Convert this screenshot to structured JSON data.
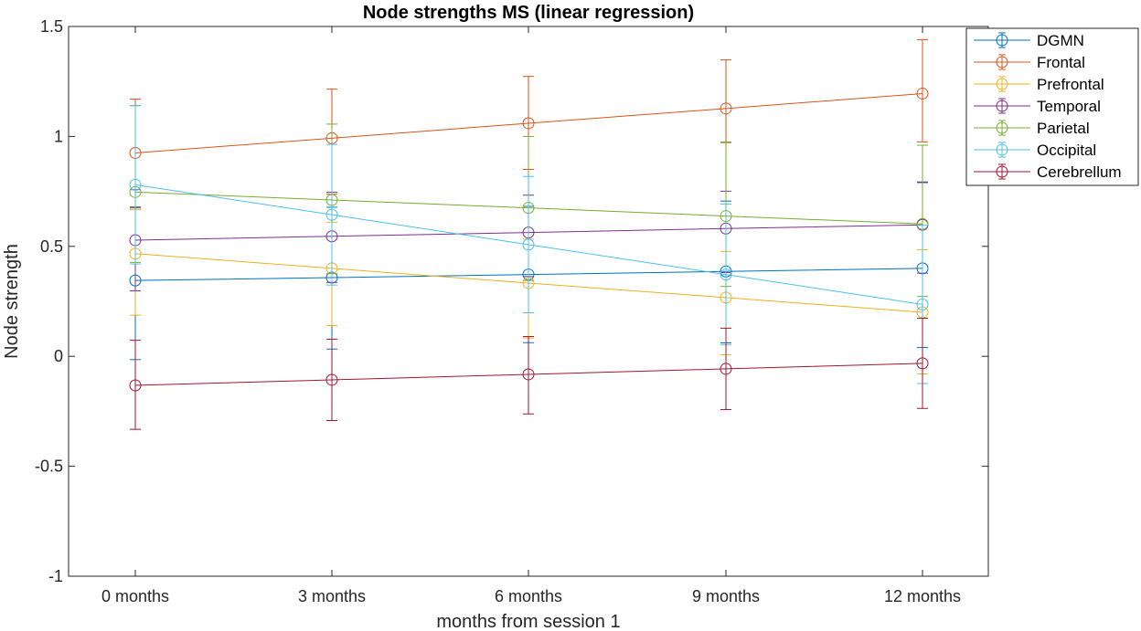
{
  "chart_data": {
    "type": "line",
    "title": "Node strengths MS (linear regression)",
    "xlabel": "months from session 1",
    "ylabel": "Node strength",
    "categories": [
      "0 months",
      "3 months",
      "6 months",
      "9 months",
      "12 months"
    ],
    "ylim": [
      -1,
      1.5
    ],
    "yticks": [
      -1,
      -0.5,
      0,
      0.5,
      1,
      1.5
    ],
    "ytick_labels": [
      "-1",
      "-0.5",
      "0",
      "0.5",
      "1",
      "1.5"
    ],
    "legend_position": "top-right-outside",
    "grid": false,
    "marker": "circle-open",
    "error_bars": true,
    "series": [
      {
        "name": "DGMN",
        "color": "#0072BD",
        "values": [
          0.345,
          0.358,
          0.372,
          0.386,
          0.4
        ],
        "err_lower": [
          0.36,
          0.325,
          0.31,
          0.325,
          0.36
        ],
        "err_upper": [
          0.33,
          0.32,
          0.31,
          0.32,
          0.39
        ]
      },
      {
        "name": "Frontal",
        "color": "#D95319",
        "values": [
          0.925,
          0.992,
          1.06,
          1.127,
          1.195
        ],
        "err_lower": [
          0.245,
          0.255,
          0.21,
          0.155,
          0.22
        ],
        "err_upper": [
          0.245,
          0.223,
          0.213,
          0.221,
          0.245
        ]
      },
      {
        "name": "Prefrontal",
        "color": "#EDB120",
        "values": [
          0.467,
          0.4,
          0.333,
          0.267,
          0.2
        ],
        "err_lower": [
          0.28,
          0.26,
          0.25,
          0.26,
          0.28
        ],
        "err_upper": [
          0.2,
          0.21,
          0.2,
          0.21,
          0.285
        ]
      },
      {
        "name": "Temporal",
        "color": "#7E2F8E",
        "values": [
          0.528,
          0.546,
          0.563,
          0.581,
          0.598
        ],
        "err_lower": [
          0.23,
          0.21,
          0.2,
          0.2,
          0.22
        ],
        "err_upper": [
          0.23,
          0.2,
          0.17,
          0.17,
          0.195
        ]
      },
      {
        "name": "Parietal",
        "color": "#77AC30",
        "values": [
          0.747,
          0.711,
          0.675,
          0.638,
          0.602
        ],
        "err_lower": [
          0.32,
          0.335,
          0.33,
          0.32,
          0.33
        ],
        "err_upper": [
          0.393,
          0.345,
          0.325,
          0.337,
          0.358
        ]
      },
      {
        "name": "Occipital",
        "color": "#4DBEEE",
        "values": [
          0.78,
          0.644,
          0.508,
          0.372,
          0.236
        ],
        "err_lower": [
          0.36,
          0.32,
          0.31,
          0.32,
          0.36
        ],
        "err_upper": [
          0.36,
          0.32,
          0.31,
          0.32,
          0.36
        ]
      },
      {
        "name": "Cerebrellum",
        "color": "#A2142F",
        "values": [
          -0.132,
          -0.107,
          -0.082,
          -0.057,
          -0.032
        ],
        "err_lower": [
          0.2,
          0.185,
          0.18,
          0.185,
          0.205
        ],
        "err_upper": [
          0.205,
          0.185,
          0.172,
          0.185,
          0.205
        ]
      }
    ]
  }
}
